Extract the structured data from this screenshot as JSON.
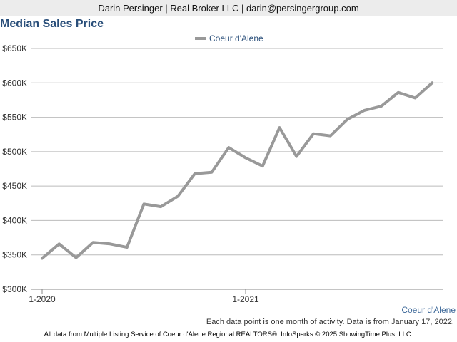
{
  "header": {
    "text": "Darin Persinger | Real Broker LLC | darin@persingergroup.com"
  },
  "colors": {
    "title": "#2a4f7a",
    "series": "#999999",
    "grid": "#bbbbbb",
    "bottom_label": "#3f6a9a"
  },
  "chart_data": {
    "type": "line",
    "title": "Median Sales Price",
    "xlabel": "",
    "ylabel": "",
    "legend": "top-center",
    "grid": true,
    "ylim": [
      300000,
      650000
    ],
    "yticks": [
      "$300K",
      "$350K",
      "$400K",
      "$450K",
      "$500K",
      "$550K",
      "$600K",
      "$650K"
    ],
    "xticks": [
      "1-2020",
      "1-2021"
    ],
    "x": [
      "1-2020",
      "2-2020",
      "3-2020",
      "4-2020",
      "5-2020",
      "6-2020",
      "7-2020",
      "8-2020",
      "9-2020",
      "10-2020",
      "11-2020",
      "12-2020",
      "1-2021",
      "2-2021",
      "3-2021",
      "4-2021",
      "5-2021",
      "6-2021",
      "7-2021",
      "8-2021",
      "9-2021",
      "10-2021",
      "11-2021",
      "12-2021"
    ],
    "series": [
      {
        "name": "Coeur d'Alene",
        "values": [
          345000,
          366000,
          346000,
          368000,
          366000,
          361000,
          424000,
          420000,
          435000,
          468000,
          470000,
          506000,
          491000,
          479000,
          535000,
          493000,
          526000,
          523000,
          547000,
          560000,
          566000,
          586000,
          578000,
          600000
        ]
      }
    ]
  },
  "bottom_label": "Coeur d'Alene",
  "note": "Each data point is one month of activity. Data is from January 17, 2022.",
  "footer": "All data from Multiple Listing Service of Coeur d'Alene Regional REALTORS®. InfoSparks © 2025 ShowingTime Plus, LLC."
}
